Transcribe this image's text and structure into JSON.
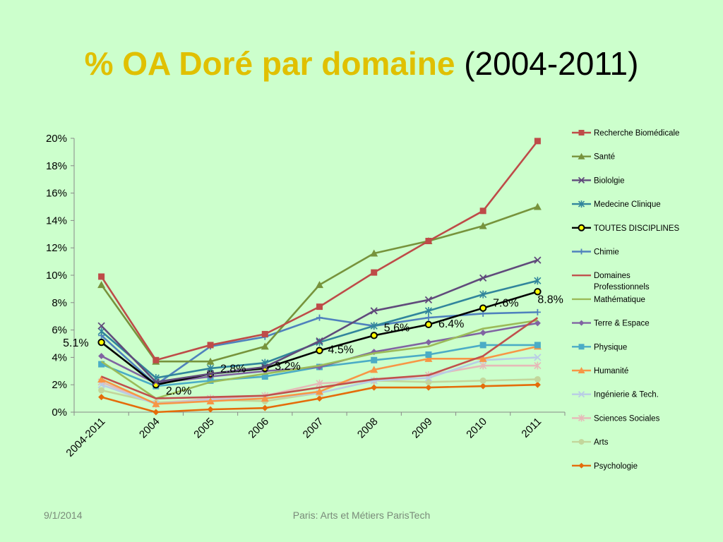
{
  "slide": {
    "title_highlight": "% OA Doré par domaine",
    "title_rest": "(2004-2011)",
    "footer_date": "9/1/2014",
    "footer_center": "Paris: Arts et Métiers ParisTech"
  },
  "colors": {
    "background": "#ccffcc",
    "title_highlight": "#e0c000"
  },
  "chart_data": {
    "type": "line",
    "title": "",
    "xlabel": "",
    "ylabel": "",
    "ylim": [
      0,
      20
    ],
    "yticks": [
      "0%",
      "2%",
      "4%",
      "6%",
      "8%",
      "10%",
      "12%",
      "14%",
      "16%",
      "18%",
      "20%"
    ],
    "categories": [
      "2004-2011",
      "2004",
      "2005",
      "2006",
      "2007",
      "2008",
      "2009",
      "2010",
      "2011"
    ],
    "legend_position": "right",
    "grid": false,
    "series": [
      {
        "name": "Recherche Biomédicale",
        "color": "#be4b48",
        "marker": "square",
        "values": [
          9.9,
          3.8,
          4.9,
          5.7,
          7.7,
          10.2,
          12.5,
          14.7,
          19.8
        ]
      },
      {
        "name": "Santé",
        "color": "#77933c",
        "marker": "triangle",
        "values": [
          9.3,
          3.7,
          3.7,
          4.8,
          9.3,
          11.6,
          12.5,
          13.6,
          15.0
        ]
      },
      {
        "name": "Biololgie",
        "color": "#604a7b",
        "marker": "x",
        "values": [
          6.3,
          2.2,
          2.8,
          3.3,
          5.2,
          7.4,
          8.2,
          9.8,
          11.1
        ]
      },
      {
        "name": "Medecine Clinique",
        "color": "#31859c",
        "marker": "star",
        "values": [
          5.9,
          2.5,
          3.2,
          3.6,
          5.1,
          6.3,
          7.4,
          8.6,
          9.6
        ]
      },
      {
        "name": "TOUTES DISCIPLINES",
        "color": "#000000",
        "marker": "circle-yellow",
        "values": [
          5.1,
          2.0,
          2.8,
          3.2,
          4.5,
          5.6,
          6.4,
          7.6,
          8.8
        ],
        "labels": [
          "5.1%",
          "2.0%",
          "2.8%",
          "3.2%",
          "4.5%",
          "5.6%",
          "6.4%",
          "7.6%",
          "8.8%"
        ]
      },
      {
        "name": "Chimie",
        "color": "#4f81bd",
        "marker": "plus",
        "values": [
          5.6,
          2.0,
          4.8,
          5.5,
          6.9,
          6.3,
          6.9,
          7.2,
          7.3
        ]
      },
      {
        "name": "Domaines Professtionnels",
        "color": "#c0504d",
        "marker": "none",
        "values": [
          2.6,
          1.0,
          1.1,
          1.2,
          1.8,
          2.4,
          2.7,
          4.1,
          6.9
        ]
      },
      {
        "name": "Mathématique",
        "color": "#9bbb59",
        "marker": "none",
        "values": [
          3.7,
          1.0,
          2.2,
          2.8,
          3.4,
          4.3,
          4.8,
          6.1,
          6.7
        ]
      },
      {
        "name": "Terre & Espace",
        "color": "#8064a2",
        "marker": "diamond",
        "values": [
          4.1,
          2.1,
          2.6,
          3.0,
          3.3,
          4.4,
          5.1,
          5.8,
          6.5
        ]
      },
      {
        "name": "Physique",
        "color": "#4bacc6",
        "marker": "square",
        "values": [
          3.5,
          1.9,
          2.3,
          2.6,
          3.3,
          3.8,
          4.2,
          4.9,
          4.9
        ]
      },
      {
        "name": "Humanité",
        "color": "#f79646",
        "marker": "triangle",
        "values": [
          2.4,
          0.6,
          0.8,
          1.0,
          1.5,
          3.1,
          3.9,
          3.9,
          4.8
        ]
      },
      {
        "name": "Ingénierie & Tech.",
        "color": "#b9cde5",
        "marker": "x",
        "values": [
          2.0,
          0.6,
          0.9,
          1.0,
          1.4,
          2.3,
          2.5,
          3.8,
          4.0
        ]
      },
      {
        "name": "Sciences Sociales",
        "color": "#e6b9b8",
        "marker": "star",
        "values": [
          2.2,
          0.6,
          1.0,
          1.2,
          2.1,
          2.3,
          2.7,
          3.4,
          3.4
        ]
      },
      {
        "name": "Arts",
        "color": "#c3d69b",
        "marker": "circle",
        "values": [
          1.6,
          0.7,
          0.9,
          0.8,
          1.4,
          2.3,
          2.2,
          2.3,
          2.4
        ]
      },
      {
        "name": "Psychologie",
        "color": "#e46c0a",
        "marker": "diamond",
        "values": [
          1.1,
          0.0,
          0.2,
          0.3,
          1.0,
          1.8,
          1.8,
          1.9,
          2.0
        ]
      }
    ]
  }
}
